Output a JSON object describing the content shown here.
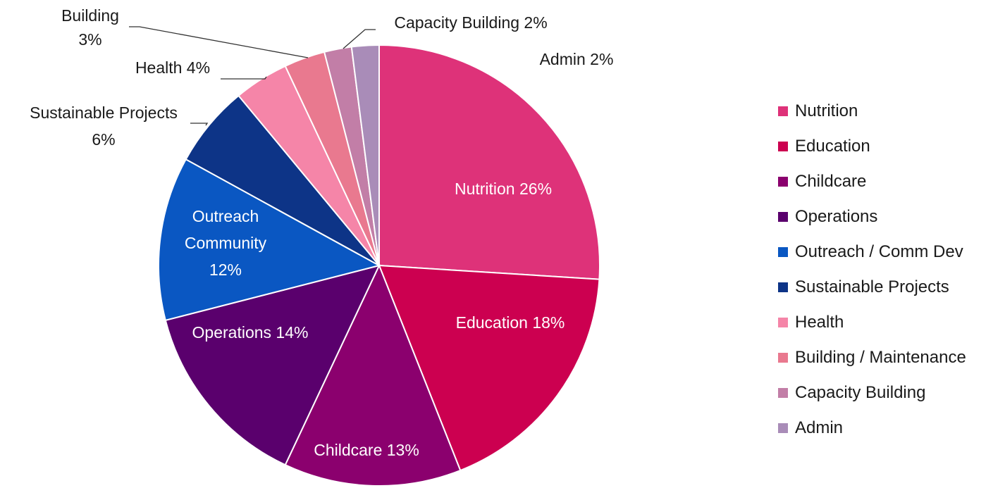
{
  "chart_data": {
    "type": "pie",
    "series": [
      {
        "name": "Nutrition",
        "value": 26,
        "color": "#de3279",
        "data_label": [
          "Nutrition 26%"
        ]
      },
      {
        "name": "Education",
        "value": 18,
        "color": "#cc0050",
        "data_label": [
          "Education 18%"
        ]
      },
      {
        "name": "Childcare",
        "value": 13,
        "color": "#8b006e",
        "data_label": [
          "Childcare 13%"
        ]
      },
      {
        "name": "Operations",
        "value": 14,
        "color": "#5a006d",
        "data_label": [
          "Operations 14%"
        ]
      },
      {
        "name": "Outreach / Comm Dev",
        "value": 12,
        "color": "#0a57c2",
        "data_label": [
          "Outreach",
          "Community",
          "12%"
        ]
      },
      {
        "name": "Sustainable Projects",
        "value": 6,
        "color": "#0d3487",
        "data_label": [
          "Sustainable Projects",
          "6%"
        ]
      },
      {
        "name": "Health",
        "value": 4,
        "color": "#f585a8",
        "data_label": [
          "Health 4%"
        ]
      },
      {
        "name": "Building / Maintenance",
        "value": 3,
        "color": "#e9798f",
        "data_label": [
          "Building",
          "3%"
        ]
      },
      {
        "name": "Capacity Building",
        "value": 2,
        "color": "#c27ea7",
        "data_label": [
          "Capacity Building 2%"
        ]
      },
      {
        "name": "Admin",
        "value": 2,
        "color": "#a98cb8",
        "data_label": [
          "Admin 2%"
        ]
      }
    ],
    "legend_position": "right",
    "title": ""
  }
}
